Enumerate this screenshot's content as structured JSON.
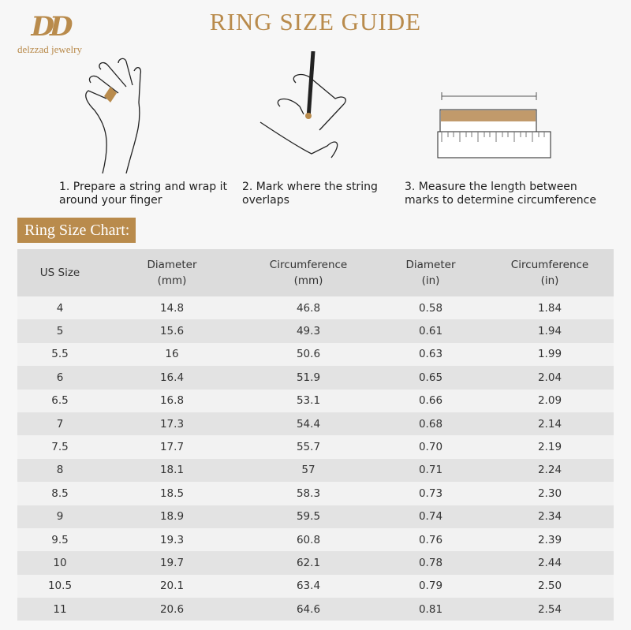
{
  "logo": {
    "monogram": "DD",
    "brand": "delzzad jewelry"
  },
  "title": "RING SIZE GUIDE",
  "steps": [
    {
      "text": "1. Prepare a string and wrap it around your finger",
      "icon": "hand-wrap-icon"
    },
    {
      "text": "2. Mark where the string overlaps",
      "icon": "hand-mark-icon"
    },
    {
      "text": "3. Measure the length between marks to determine circumference",
      "icon": "ruler-icon"
    }
  ],
  "chart_label": "Ring Size Chart:",
  "colors": {
    "accent": "#b98b4c",
    "header_bg": "#dcdcdc",
    "row_light": "#f2f2f2",
    "row_dark": "#e3e3e3"
  },
  "table": {
    "headers": [
      [
        "US Size",
        ""
      ],
      [
        "Diameter",
        "(mm)"
      ],
      [
        "Circumference",
        "(mm)"
      ],
      [
        "Diameter",
        "(in)"
      ],
      [
        "Circumference",
        "(in)"
      ]
    ],
    "rows": [
      [
        "4",
        "14.8",
        "46.8",
        "0.58",
        "1.84"
      ],
      [
        "5",
        "15.6",
        "49.3",
        "0.61",
        "1.94"
      ],
      [
        "5.5",
        "16",
        "50.6",
        "0.63",
        "1.99"
      ],
      [
        "6",
        "16.4",
        "51.9",
        "0.65",
        "2.04"
      ],
      [
        "6.5",
        "16.8",
        "53.1",
        "0.66",
        "2.09"
      ],
      [
        "7",
        "17.3",
        "54.4",
        "0.68",
        "2.14"
      ],
      [
        "7.5",
        "17.7",
        "55.7",
        "0.70",
        "2.19"
      ],
      [
        "8",
        "18.1",
        "57",
        "0.71",
        "2.24"
      ],
      [
        "8.5",
        "18.5",
        "58.3",
        "0.73",
        "2.30"
      ],
      [
        "9",
        "18.9",
        "59.5",
        "0.74",
        "2.34"
      ],
      [
        "9.5",
        "19.3",
        "60.8",
        "0.76",
        "2.39"
      ],
      [
        "10",
        "19.7",
        "62.1",
        "0.78",
        "2.44"
      ],
      [
        "10.5",
        "20.1",
        "63.4",
        "0.79",
        "2.50"
      ],
      [
        "11",
        "20.6",
        "64.6",
        "0.81",
        "2.54"
      ]
    ]
  }
}
